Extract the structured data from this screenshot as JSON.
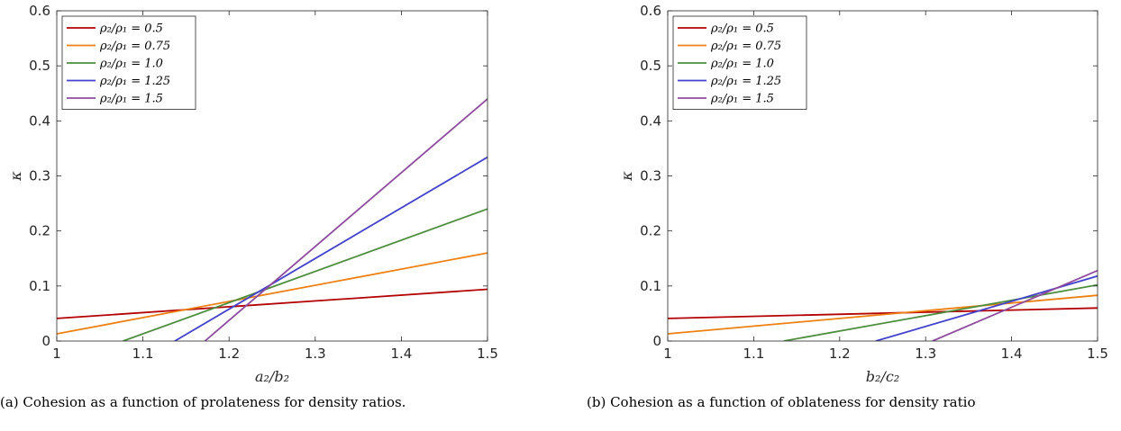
{
  "chart_data": [
    {
      "type": "line",
      "xlabel": "a₂/b₂",
      "ylabel": "κ",
      "xlim": [
        1,
        1.5
      ],
      "ylim": [
        0,
        0.6
      ],
      "xticks": [
        1,
        1.1,
        1.2,
        1.3,
        1.4,
        1.5
      ],
      "yticks": [
        0,
        0.1,
        0.2,
        0.3,
        0.4,
        0.5,
        0.6
      ],
      "grid": false,
      "legend_position": "top-left",
      "caption": "(a) Cohesion as a function of prolateness for density ratios.",
      "series": [
        {
          "name": "ρ₂/ρ₁ = 0.5",
          "color": "#B30000",
          "x": [
            1.0,
            1.5
          ],
          "y": [
            0.041,
            0.094
          ]
        },
        {
          "name": "ρ₂/ρ₁ = 0.75",
          "color": "#EE8011",
          "x": [
            1.0,
            1.5
          ],
          "y": [
            0.013,
            0.16
          ]
        },
        {
          "name": "ρ₂/ρ₁ = 1.0",
          "color": "#4D8E3E",
          "x": [
            1.077,
            1.5
          ],
          "y": [
            0.0,
            0.24
          ]
        },
        {
          "name": "ρ₂/ρ₁ = 1.25",
          "color": "#4242CC",
          "x": [
            1.137,
            1.5
          ],
          "y": [
            0.0,
            0.334
          ]
        },
        {
          "name": "ρ₂/ρ₁ = 1.5",
          "color": "#8E4B9E",
          "x": [
            1.172,
            1.5
          ],
          "y": [
            0.0,
            0.44
          ]
        }
      ]
    },
    {
      "type": "line",
      "xlabel": "b₂/c₂",
      "ylabel": "κ",
      "xlim": [
        1,
        1.5
      ],
      "ylim": [
        0,
        0.6
      ],
      "xticks": [
        1,
        1.1,
        1.2,
        1.3,
        1.4,
        1.5
      ],
      "yticks": [
        0,
        0.1,
        0.2,
        0.3,
        0.4,
        0.5,
        0.6
      ],
      "grid": false,
      "legend_position": "top-left",
      "caption": "(b) Cohesion as a function of oblateness for density ratio",
      "series": [
        {
          "name": "ρ₂/ρ₁ = 0.5",
          "color": "#B30000",
          "x": [
            1.0,
            1.5
          ],
          "y": [
            0.041,
            0.06
          ]
        },
        {
          "name": "ρ₂/ρ₁ = 0.75",
          "color": "#EE8011",
          "x": [
            1.0,
            1.5
          ],
          "y": [
            0.013,
            0.083
          ]
        },
        {
          "name": "ρ₂/ρ₁ = 1.0",
          "color": "#4D8E3E",
          "x": [
            1.135,
            1.5
          ],
          "y": [
            0.0,
            0.102
          ]
        },
        {
          "name": "ρ₂/ρ₁ = 1.25",
          "color": "#4242CC",
          "x": [
            1.242,
            1.5
          ],
          "y": [
            0.0,
            0.118
          ]
        },
        {
          "name": "ρ₂/ρ₁ = 1.5",
          "color": "#8E4B9E",
          "x": [
            1.308,
            1.5
          ],
          "y": [
            0.0,
            0.128
          ]
        }
      ]
    }
  ]
}
